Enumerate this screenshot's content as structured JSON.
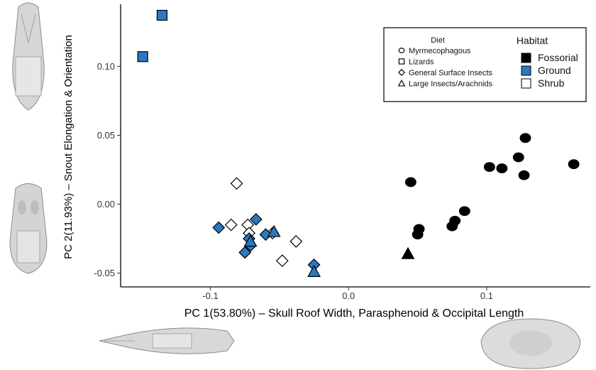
{
  "chart_data": {
    "type": "scatter",
    "xlabel": "PC 1(53.80%) – Skull Roof Width, Parasphenoid & Occipital Length",
    "ylabel": "PC 2(11.93%) – Snout Elongation & Orientation",
    "xlim": [
      -0.165,
      0.175
    ],
    "ylim": [
      -0.06,
      0.145
    ],
    "x_ticks": [
      {
        "value": -0.1,
        "label": "-0.1"
      },
      {
        "value": 0.0,
        "label": "0.0"
      },
      {
        "value": 0.1,
        "label": "0.1"
      }
    ],
    "y_ticks": [
      {
        "value": -0.05,
        "label": "-0.05"
      },
      {
        "value": 0.0,
        "label": "0.00"
      },
      {
        "value": 0.05,
        "label": "0.05"
      },
      {
        "value": 0.1,
        "label": "0.10"
      }
    ],
    "grid": false,
    "legend": {
      "placement": "top-right",
      "diet_title": "Diet",
      "habitat_title": "Habitat",
      "diet_items": [
        {
          "label": "Myrmecophagous",
          "shape": "circle"
        },
        {
          "label": "Lizards",
          "shape": "square"
        },
        {
          "label": "General Surface Insects",
          "shape": "diamond"
        },
        {
          "label": "Large Insects/Arachnids",
          "shape": "triangle"
        }
      ],
      "habitat_items": [
        {
          "label": "Fossorial",
          "color": "#000000"
        },
        {
          "label": "Ground",
          "color": "#2b78c2"
        },
        {
          "label": "Shrub",
          "color": "#ffffff"
        }
      ]
    },
    "points": [
      {
        "x": -0.149,
        "y": 0.107,
        "shape": "square",
        "habitat": "Ground"
      },
      {
        "x": -0.135,
        "y": 0.137,
        "shape": "square",
        "habitat": "Ground"
      },
      {
        "x": -0.081,
        "y": 0.015,
        "shape": "diamond",
        "habitat": "Shrub"
      },
      {
        "x": -0.085,
        "y": -0.015,
        "shape": "diamond",
        "habitat": "Shrub"
      },
      {
        "x": -0.073,
        "y": -0.015,
        "shape": "diamond",
        "habitat": "Shrub"
      },
      {
        "x": -0.072,
        "y": -0.021,
        "shape": "diamond",
        "habitat": "Shrub"
      },
      {
        "x": -0.055,
        "y": -0.021,
        "shape": "diamond",
        "habitat": "Shrub"
      },
      {
        "x": -0.038,
        "y": -0.027,
        "shape": "diamond",
        "habitat": "Shrub"
      },
      {
        "x": -0.048,
        "y": -0.041,
        "shape": "diamond",
        "habitat": "Shrub"
      },
      {
        "x": -0.094,
        "y": -0.017,
        "shape": "diamond",
        "habitat": "Ground"
      },
      {
        "x": -0.067,
        "y": -0.011,
        "shape": "diamond",
        "habitat": "Ground"
      },
      {
        "x": -0.06,
        "y": -0.022,
        "shape": "diamond",
        "habitat": "Ground"
      },
      {
        "x": -0.072,
        "y": -0.025,
        "shape": "diamond",
        "habitat": "Ground"
      },
      {
        "x": -0.071,
        "y": -0.03,
        "shape": "diamond",
        "habitat": "Ground"
      },
      {
        "x": -0.075,
        "y": -0.035,
        "shape": "diamond",
        "habitat": "Ground"
      },
      {
        "x": -0.025,
        "y": -0.044,
        "shape": "diamond",
        "habitat": "Ground"
      },
      {
        "x": -0.054,
        "y": -0.02,
        "shape": "triangle",
        "habitat": "Ground"
      },
      {
        "x": -0.071,
        "y": -0.027,
        "shape": "triangle",
        "habitat": "Ground"
      },
      {
        "x": -0.025,
        "y": -0.049,
        "shape": "triangle",
        "habitat": "Ground"
      },
      {
        "x": 0.043,
        "y": -0.036,
        "shape": "triangle",
        "habitat": "Fossorial"
      },
      {
        "x": 0.045,
        "y": 0.016,
        "shape": "circle",
        "habitat": "Fossorial"
      },
      {
        "x": 0.051,
        "y": -0.018,
        "shape": "circle",
        "habitat": "Fossorial"
      },
      {
        "x": 0.05,
        "y": -0.022,
        "shape": "circle",
        "habitat": "Fossorial"
      },
      {
        "x": 0.075,
        "y": -0.016,
        "shape": "circle",
        "habitat": "Fossorial"
      },
      {
        "x": 0.077,
        "y": -0.012,
        "shape": "circle",
        "habitat": "Fossorial"
      },
      {
        "x": 0.084,
        "y": -0.005,
        "shape": "circle",
        "habitat": "Fossorial"
      },
      {
        "x": 0.102,
        "y": 0.027,
        "shape": "circle",
        "habitat": "Fossorial"
      },
      {
        "x": 0.111,
        "y": 0.026,
        "shape": "circle",
        "habitat": "Fossorial"
      },
      {
        "x": 0.123,
        "y": 0.034,
        "shape": "circle",
        "habitat": "Fossorial"
      },
      {
        "x": 0.128,
        "y": 0.048,
        "shape": "circle",
        "habitat": "Fossorial"
      },
      {
        "x": 0.127,
        "y": 0.021,
        "shape": "circle",
        "habitat": "Fossorial"
      },
      {
        "x": 0.163,
        "y": 0.029,
        "shape": "circle",
        "habitat": "Fossorial"
      }
    ]
  }
}
